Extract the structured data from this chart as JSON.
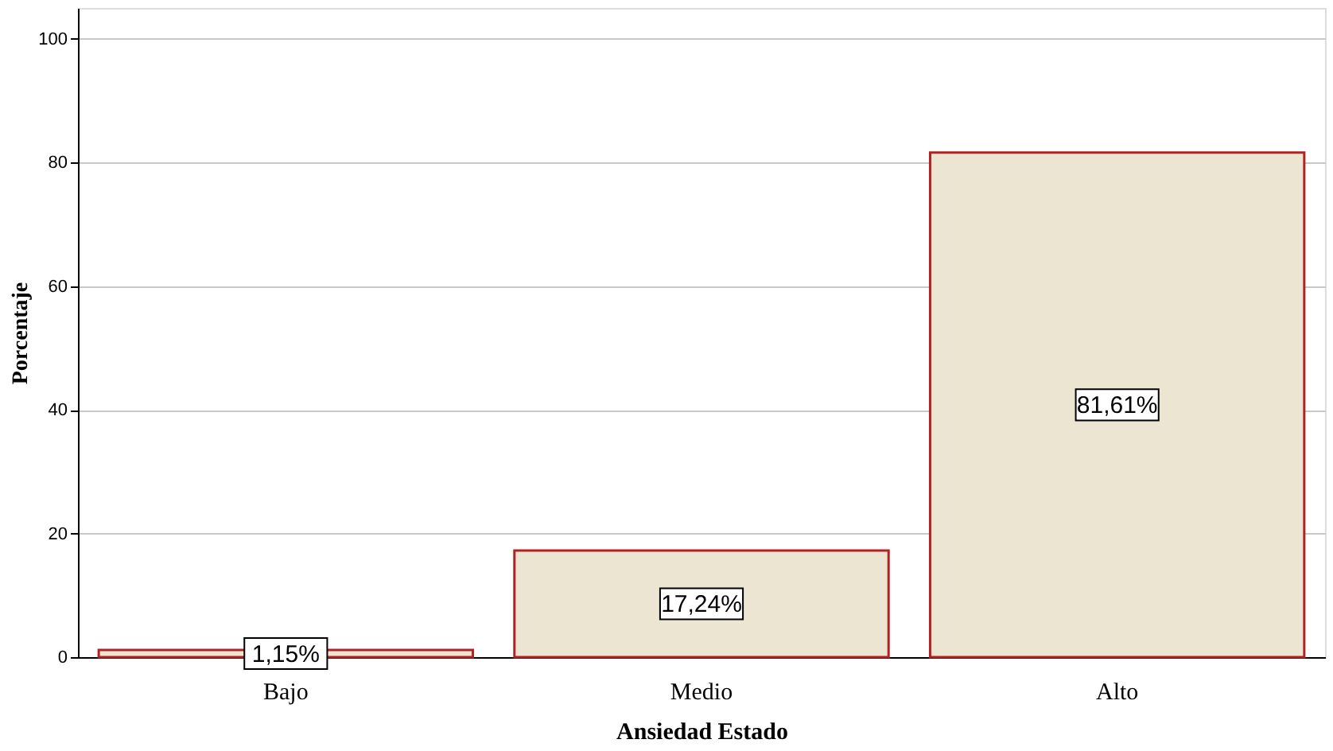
{
  "chart_data": {
    "type": "bar",
    "xlabel": "Ansiedad Estado",
    "ylabel": "Porcentaje",
    "categories": [
      "Bajo",
      "Medio",
      "Alto"
    ],
    "series": [
      {
        "color": "#ebe5d1",
        "values": [
          1.15,
          17.24,
          81.61
        ]
      }
    ],
    "value_labels": [
      "1,15%",
      "17,24%",
      "81,61%"
    ],
    "ylim": [
      0,
      105
    ],
    "yticks": [
      0,
      20,
      40,
      60,
      80,
      100
    ],
    "grid": "y"
  }
}
